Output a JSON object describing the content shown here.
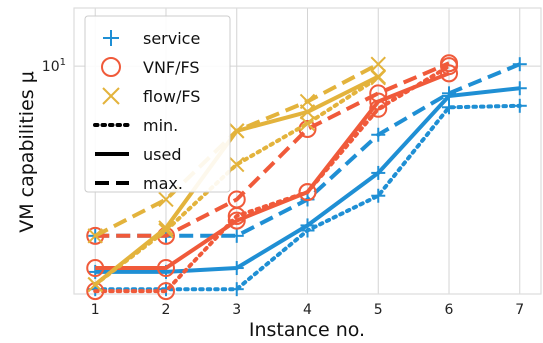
{
  "chart_data": {
    "type": "line",
    "xlabel": "Instance no.",
    "ylabel": "VM capabilities μ",
    "x": [
      1,
      2,
      3,
      4,
      5,
      6,
      7
    ],
    "xlim": [
      0.7,
      7.3
    ],
    "yscale": "log",
    "ylim": [
      1.0,
      18.0
    ],
    "yticks": [
      {
        "value": 10,
        "base": "10",
        "exp": "1"
      }
    ],
    "grid": true,
    "legend_position": "top-left",
    "colors": {
      "service": "#1f8fd4",
      "vnf": "#f05a3a",
      "flow": "#e3b33c"
    },
    "legend": [
      {
        "label": "service",
        "kind": "marker",
        "marker": "plus",
        "color_key": "service"
      },
      {
        "label": "VNF/FS",
        "kind": "marker",
        "marker": "circle",
        "color_key": "vnf"
      },
      {
        "label": "flow/FS",
        "kind": "marker",
        "marker": "x",
        "color_key": "flow"
      },
      {
        "label": "min.",
        "kind": "line",
        "style": "dotted"
      },
      {
        "label": "used",
        "kind": "line",
        "style": "solid"
      },
      {
        "label": "max.",
        "kind": "line",
        "style": "dashed"
      }
    ],
    "series": [
      {
        "group": "service",
        "stat": "min.",
        "color_key": "service",
        "marker": "plus",
        "x": [
          1,
          2,
          3,
          4,
          5,
          6,
          7
        ],
        "y": [
          1.05,
          1.05,
          1.05,
          1.9,
          2.7,
          6.6,
          6.7
        ]
      },
      {
        "group": "service",
        "stat": "used",
        "color_key": "service",
        "marker": "plus",
        "x": [
          1,
          2,
          3,
          4,
          5,
          6,
          7
        ],
        "y": [
          1.25,
          1.25,
          1.3,
          2.0,
          3.4,
          7.4,
          8.0
        ]
      },
      {
        "group": "service",
        "stat": "max.",
        "color_key": "service",
        "marker": "plus",
        "x": [
          1,
          2,
          3,
          4,
          5,
          6,
          7
        ],
        "y": [
          1.8,
          1.8,
          1.8,
          2.6,
          5.0,
          7.6,
          10.2
        ]
      },
      {
        "group": "VNF/FS",
        "stat": "min.",
        "color_key": "vnf",
        "marker": "circle",
        "x": [
          1,
          2,
          3,
          4,
          5,
          6
        ],
        "y": [
          1.03,
          1.03,
          2.2,
          2.8,
          6.5,
          10.0
        ]
      },
      {
        "group": "VNF/FS",
        "stat": "used",
        "color_key": "vnf",
        "marker": "circle",
        "x": [
          1,
          2,
          3,
          4,
          5,
          6
        ],
        "y": [
          1.3,
          1.3,
          2.1,
          2.8,
          7.0,
          9.3
        ]
      },
      {
        "group": "VNF/FS",
        "stat": "max.",
        "color_key": "vnf",
        "marker": "circle",
        "x": [
          1,
          2,
          3,
          4,
          5,
          6
        ],
        "y": [
          1.8,
          1.8,
          2.6,
          5.3,
          7.6,
          10.3
        ]
      },
      {
        "group": "flow/FS",
        "stat": "min.",
        "color_key": "flow",
        "marker": "x",
        "x": [
          1,
          2,
          3,
          4,
          5
        ],
        "y": [
          1.1,
          1.9,
          3.7,
          5.6,
          8.9
        ]
      },
      {
        "group": "flow/FS",
        "stat": "used",
        "color_key": "flow",
        "marker": "x",
        "x": [
          1,
          2,
          3,
          4,
          5
        ],
        "y": [
          1.1,
          1.95,
          5.2,
          6.3,
          9.0
        ]
      },
      {
        "group": "flow/FS",
        "stat": "max.",
        "color_key": "flow",
        "marker": "x",
        "x": [
          1,
          2,
          3,
          4,
          5
        ],
        "y": [
          1.8,
          2.6,
          5.2,
          7.0,
          10.2
        ]
      }
    ]
  }
}
